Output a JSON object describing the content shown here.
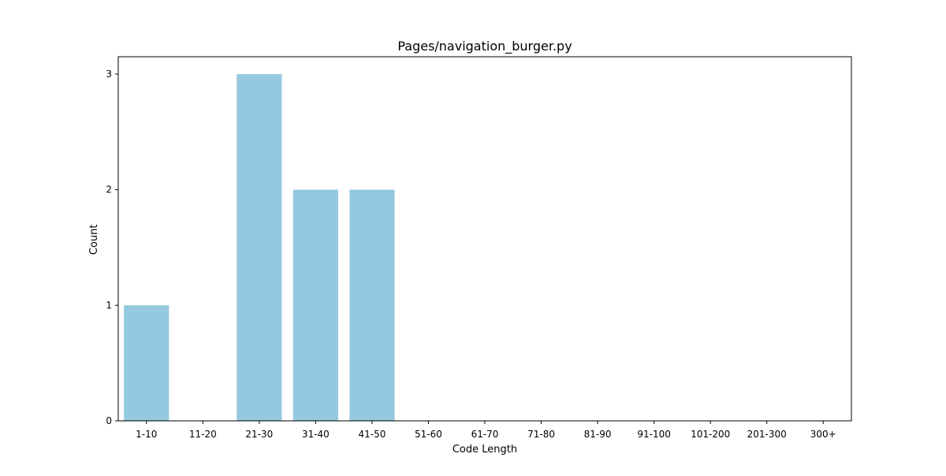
{
  "chart_data": {
    "type": "bar",
    "title": "Pages/navigation_burger.py",
    "xlabel": "Code Length",
    "ylabel": "Count",
    "categories": [
      "1-10",
      "11-20",
      "21-30",
      "31-40",
      "41-50",
      "51-60",
      "61-70",
      "71-80",
      "81-90",
      "91-100",
      "101-200",
      "201-300",
      "300+"
    ],
    "values": [
      1,
      0,
      3,
      2,
      2,
      0,
      0,
      0,
      0,
      0,
      0,
      0,
      0
    ],
    "yticks": [
      0,
      1,
      2,
      3
    ],
    "ylim": [
      0,
      3.15
    ],
    "grid": false,
    "colors": {
      "bar": "#95c9df",
      "axis": "#000000"
    }
  }
}
